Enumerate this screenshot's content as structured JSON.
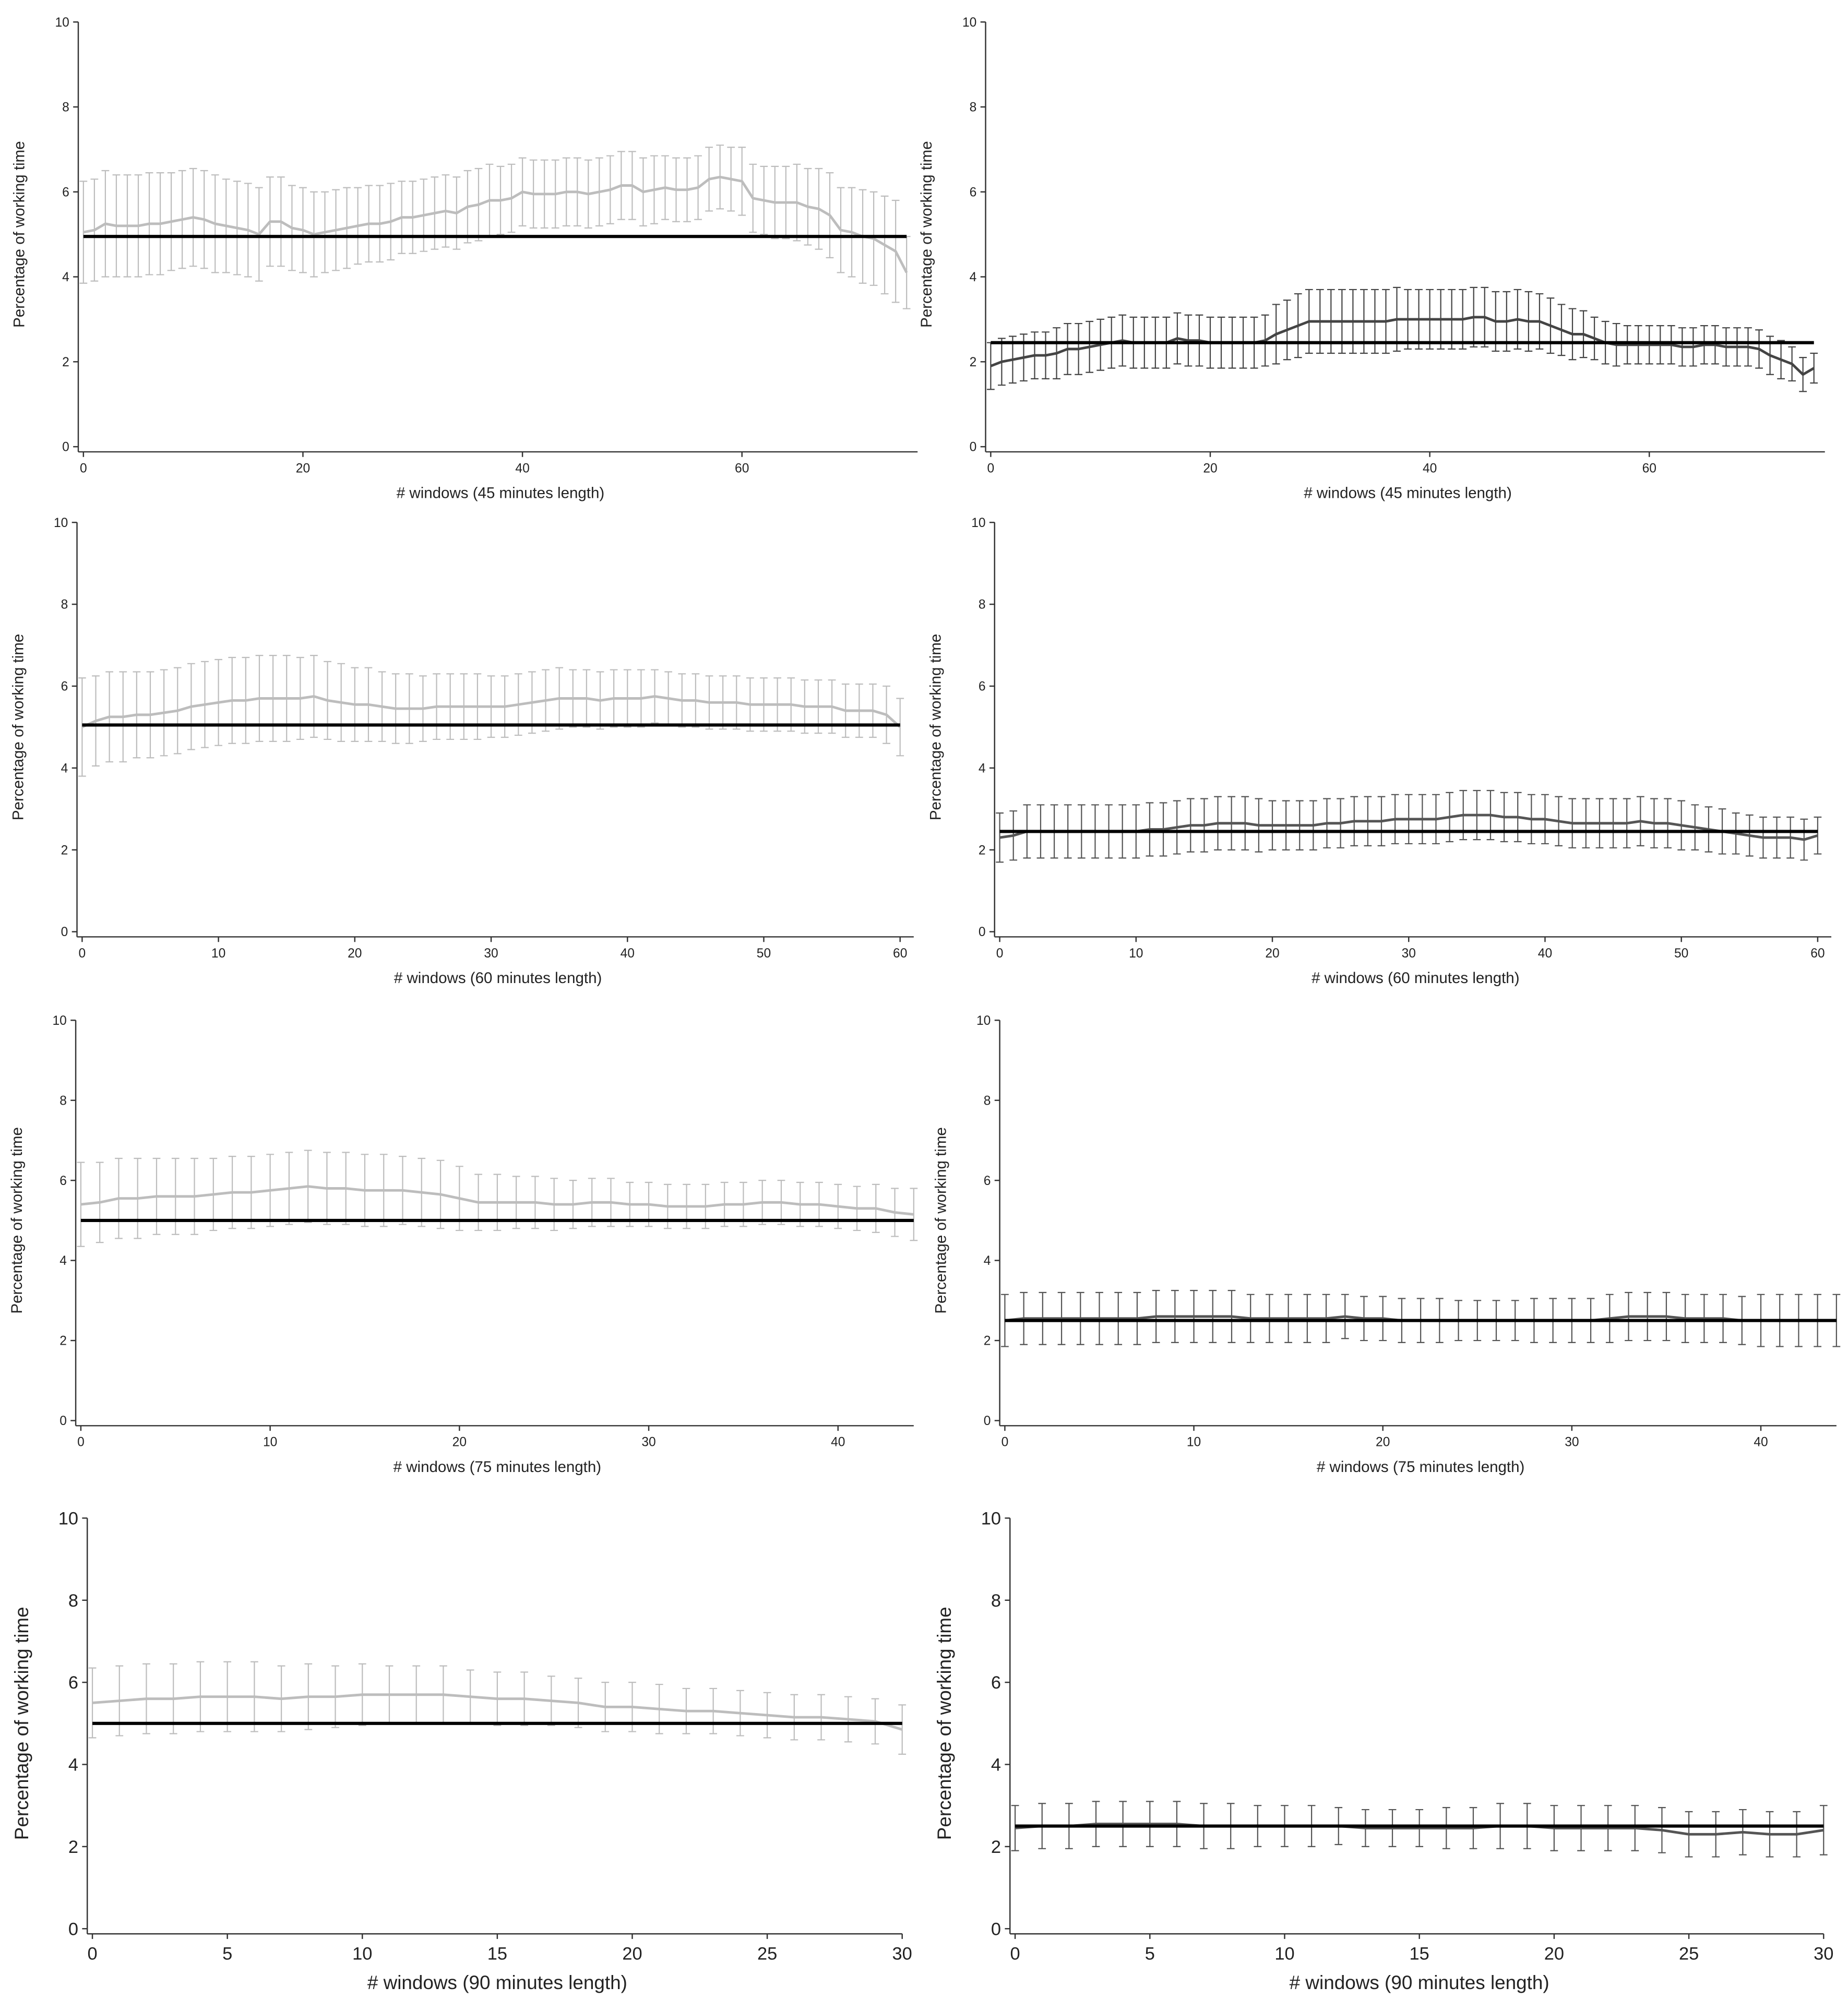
{
  "chart_data": [
    {
      "type": "line",
      "x_label": "# windows (45 minutes length)",
      "y_label": "Percentage of working time",
      "xlim": [
        0,
        76
      ],
      "ylim": [
        0,
        10
      ],
      "xticks": [
        0,
        20,
        40,
        60
      ],
      "yticks": [
        0,
        2,
        4,
        6,
        8,
        10
      ],
      "reference_line": 4.95,
      "reference_color": "#000000",
      "series": [
        {
          "color": "#bdbdbd",
          "values": [
            5.05,
            5.1,
            5.25,
            5.2,
            5.2,
            5.2,
            5.25,
            5.25,
            5.3,
            5.35,
            5.4,
            5.35,
            5.25,
            5.2,
            5.15,
            5.1,
            5.0,
            5.3,
            5.3,
            5.15,
            5.1,
            5.0,
            5.05,
            5.1,
            5.15,
            5.2,
            5.25,
            5.25,
            5.3,
            5.4,
            5.4,
            5.45,
            5.5,
            5.55,
            5.5,
            5.65,
            5.7,
            5.8,
            5.8,
            5.85,
            6.0,
            5.95,
            5.95,
            5.95,
            6.0,
            6.0,
            5.95,
            6.0,
            6.05,
            6.15,
            6.15,
            6.0,
            6.05,
            6.1,
            6.05,
            6.05,
            6.1,
            6.3,
            6.35,
            6.3,
            6.25,
            5.85,
            5.8,
            5.75,
            5.75,
            5.75,
            5.65,
            5.6,
            5.45,
            5.1,
            5.05,
            4.95,
            4.9,
            4.75,
            4.6,
            4.1
          ],
          "errors": [
            1.2,
            1.2,
            1.25,
            1.2,
            1.2,
            1.2,
            1.2,
            1.2,
            1.15,
            1.15,
            1.15,
            1.15,
            1.15,
            1.1,
            1.1,
            1.1,
            1.1,
            1.05,
            1.05,
            1.0,
            1.0,
            1.0,
            0.95,
            0.95,
            0.95,
            0.9,
            0.9,
            0.9,
            0.9,
            0.85,
            0.85,
            0.85,
            0.85,
            0.85,
            0.85,
            0.85,
            0.85,
            0.85,
            0.8,
            0.8,
            0.8,
            0.8,
            0.8,
            0.8,
            0.8,
            0.8,
            0.8,
            0.8,
            0.8,
            0.8,
            0.8,
            0.8,
            0.8,
            0.75,
            0.75,
            0.75,
            0.75,
            0.75,
            0.75,
            0.75,
            0.8,
            0.8,
            0.8,
            0.85,
            0.85,
            0.9,
            0.9,
            0.95,
            1.0,
            1.0,
            1.05,
            1.1,
            1.1,
            1.15,
            1.2,
            0.85
          ]
        }
      ]
    },
    {
      "type": "line",
      "x_label": "# windows (45 minutes length)",
      "y_label": "Percentage of working time",
      "xlim": [
        0,
        76
      ],
      "ylim": [
        0,
        10
      ],
      "xticks": [
        0,
        20,
        40,
        60
      ],
      "yticks": [
        0,
        2,
        4,
        6,
        8,
        10
      ],
      "reference_line": 2.45,
      "reference_color": "#000000",
      "series": [
        {
          "color": "#444444",
          "values": [
            1.9,
            2.0,
            2.05,
            2.1,
            2.15,
            2.15,
            2.2,
            2.3,
            2.3,
            2.35,
            2.4,
            2.45,
            2.5,
            2.45,
            2.45,
            2.45,
            2.45,
            2.55,
            2.5,
            2.5,
            2.45,
            2.45,
            2.45,
            2.45,
            2.45,
            2.5,
            2.65,
            2.75,
            2.85,
            2.95,
            2.95,
            2.95,
            2.95,
            2.95,
            2.95,
            2.95,
            2.95,
            3.0,
            3.0,
            3.0,
            3.0,
            3.0,
            3.0,
            3.0,
            3.05,
            3.05,
            2.95,
            2.95,
            3.0,
            2.95,
            2.95,
            2.85,
            2.75,
            2.65,
            2.65,
            2.55,
            2.45,
            2.4,
            2.4,
            2.4,
            2.4,
            2.4,
            2.4,
            2.35,
            2.35,
            2.4,
            2.4,
            2.35,
            2.35,
            2.35,
            2.3,
            2.15,
            2.05,
            1.95,
            1.7,
            1.85
          ],
          "errors": [
            0.55,
            0.55,
            0.55,
            0.55,
            0.55,
            0.55,
            0.6,
            0.6,
            0.6,
            0.6,
            0.6,
            0.6,
            0.6,
            0.6,
            0.6,
            0.6,
            0.6,
            0.6,
            0.6,
            0.6,
            0.6,
            0.6,
            0.6,
            0.6,
            0.6,
            0.6,
            0.7,
            0.7,
            0.75,
            0.75,
            0.75,
            0.75,
            0.75,
            0.75,
            0.75,
            0.75,
            0.75,
            0.75,
            0.7,
            0.7,
            0.7,
            0.7,
            0.7,
            0.7,
            0.7,
            0.7,
            0.7,
            0.7,
            0.7,
            0.7,
            0.65,
            0.65,
            0.6,
            0.6,
            0.55,
            0.5,
            0.5,
            0.5,
            0.45,
            0.45,
            0.45,
            0.45,
            0.45,
            0.45,
            0.45,
            0.45,
            0.45,
            0.45,
            0.45,
            0.45,
            0.45,
            0.45,
            0.45,
            0.4,
            0.4,
            0.35
          ]
        }
      ]
    },
    {
      "type": "line",
      "x_label": "# windows (60 minutes length)",
      "y_label": "Percentage of working time",
      "xlim": [
        0,
        61
      ],
      "ylim": [
        0,
        10
      ],
      "xticks": [
        0,
        10,
        20,
        30,
        40,
        50,
        60
      ],
      "yticks": [
        0,
        2,
        4,
        6,
        8,
        10
      ],
      "reference_line": 5.05,
      "reference_color": "#000000",
      "series": [
        {
          "color": "#bdbdbd",
          "values": [
            5.0,
            5.15,
            5.25,
            5.25,
            5.3,
            5.3,
            5.35,
            5.4,
            5.5,
            5.55,
            5.6,
            5.65,
            5.65,
            5.7,
            5.7,
            5.7,
            5.7,
            5.75,
            5.65,
            5.6,
            5.55,
            5.55,
            5.5,
            5.45,
            5.45,
            5.45,
            5.5,
            5.5,
            5.5,
            5.5,
            5.5,
            5.5,
            5.55,
            5.6,
            5.65,
            5.7,
            5.7,
            5.7,
            5.65,
            5.7,
            5.7,
            5.7,
            5.75,
            5.7,
            5.65,
            5.65,
            5.6,
            5.6,
            5.6,
            5.55,
            5.55,
            5.55,
            5.55,
            5.5,
            5.5,
            5.5,
            5.4,
            5.4,
            5.4,
            5.3,
            5.0
          ],
          "errors": [
            1.2,
            1.1,
            1.1,
            1.1,
            1.05,
            1.05,
            1.05,
            1.05,
            1.05,
            1.05,
            1.05,
            1.05,
            1.05,
            1.05,
            1.05,
            1.05,
            1.0,
            1.0,
            0.95,
            0.95,
            0.9,
            0.9,
            0.85,
            0.85,
            0.85,
            0.8,
            0.8,
            0.8,
            0.8,
            0.8,
            0.75,
            0.75,
            0.75,
            0.75,
            0.75,
            0.75,
            0.7,
            0.7,
            0.7,
            0.7,
            0.7,
            0.7,
            0.65,
            0.65,
            0.65,
            0.65,
            0.65,
            0.65,
            0.65,
            0.65,
            0.65,
            0.65,
            0.65,
            0.65,
            0.65,
            0.65,
            0.65,
            0.65,
            0.65,
            0.7,
            0.7
          ]
        }
      ]
    },
    {
      "type": "line",
      "x_label": "# windows (60 minutes length)",
      "y_label": "Percentage of working time",
      "xlim": [
        0,
        61
      ],
      "ylim": [
        0,
        10
      ],
      "xticks": [
        0,
        10,
        20,
        30,
        40,
        50,
        60
      ],
      "yticks": [
        0,
        2,
        4,
        6,
        8,
        10
      ],
      "reference_line": 2.45,
      "reference_color": "#000000",
      "series": [
        {
          "color": "#555555",
          "values": [
            2.3,
            2.35,
            2.45,
            2.45,
            2.45,
            2.45,
            2.45,
            2.45,
            2.45,
            2.45,
            2.45,
            2.5,
            2.5,
            2.55,
            2.6,
            2.6,
            2.65,
            2.65,
            2.65,
            2.6,
            2.6,
            2.6,
            2.6,
            2.6,
            2.65,
            2.65,
            2.7,
            2.7,
            2.7,
            2.75,
            2.75,
            2.75,
            2.75,
            2.8,
            2.85,
            2.85,
            2.85,
            2.8,
            2.8,
            2.75,
            2.75,
            2.7,
            2.65,
            2.65,
            2.65,
            2.65,
            2.65,
            2.7,
            2.65,
            2.65,
            2.6,
            2.55,
            2.5,
            2.45,
            2.4,
            2.35,
            2.3,
            2.3,
            2.3,
            2.25,
            2.35
          ],
          "errors": [
            0.6,
            0.6,
            0.65,
            0.65,
            0.65,
            0.65,
            0.65,
            0.65,
            0.65,
            0.65,
            0.65,
            0.65,
            0.65,
            0.65,
            0.65,
            0.65,
            0.65,
            0.65,
            0.65,
            0.65,
            0.6,
            0.6,
            0.6,
            0.6,
            0.6,
            0.6,
            0.6,
            0.6,
            0.6,
            0.6,
            0.6,
            0.6,
            0.6,
            0.6,
            0.6,
            0.6,
            0.6,
            0.6,
            0.6,
            0.6,
            0.6,
            0.6,
            0.6,
            0.6,
            0.6,
            0.6,
            0.6,
            0.6,
            0.6,
            0.6,
            0.6,
            0.55,
            0.55,
            0.55,
            0.5,
            0.5,
            0.5,
            0.5,
            0.5,
            0.5,
            0.45
          ]
        }
      ]
    },
    {
      "type": "line",
      "x_label": "# windows (75 minutes length)",
      "y_label": "Percentage of working time",
      "xlim": [
        0,
        44
      ],
      "ylim": [
        0,
        10
      ],
      "xticks": [
        0,
        10,
        20,
        30,
        40
      ],
      "yticks": [
        0,
        2,
        4,
        6,
        8,
        10
      ],
      "reference_line": 5.0,
      "reference_color": "#000000",
      "series": [
        {
          "color": "#bdbdbd",
          "values": [
            5.4,
            5.45,
            5.55,
            5.55,
            5.6,
            5.6,
            5.6,
            5.65,
            5.7,
            5.7,
            5.75,
            5.8,
            5.85,
            5.8,
            5.8,
            5.75,
            5.75,
            5.75,
            5.7,
            5.65,
            5.55,
            5.45,
            5.45,
            5.45,
            5.45,
            5.4,
            5.4,
            5.45,
            5.45,
            5.4,
            5.4,
            5.35,
            5.35,
            5.35,
            5.4,
            5.4,
            5.45,
            5.45,
            5.4,
            5.4,
            5.35,
            5.3,
            5.3,
            5.2,
            5.15
          ],
          "errors": [
            1.05,
            1.0,
            1.0,
            1.0,
            0.95,
            0.95,
            0.95,
            0.9,
            0.9,
            0.9,
            0.9,
            0.9,
            0.9,
            0.9,
            0.9,
            0.9,
            0.9,
            0.85,
            0.85,
            0.85,
            0.8,
            0.7,
            0.7,
            0.65,
            0.65,
            0.65,
            0.6,
            0.6,
            0.6,
            0.55,
            0.55,
            0.55,
            0.55,
            0.55,
            0.55,
            0.55,
            0.55,
            0.55,
            0.55,
            0.55,
            0.55,
            0.55,
            0.6,
            0.6,
            0.65
          ]
        }
      ]
    },
    {
      "type": "line",
      "x_label": "# windows (75 minutes length)",
      "y_label": "Percentage of working time",
      "xlim": [
        0,
        44
      ],
      "ylim": [
        0,
        10
      ],
      "xticks": [
        0,
        10,
        20,
        30,
        40
      ],
      "yticks": [
        0,
        2,
        4,
        6,
        8,
        10
      ],
      "reference_line": 2.5,
      "reference_color": "#000000",
      "series": [
        {
          "color": "#555555",
          "values": [
            2.5,
            2.55,
            2.55,
            2.55,
            2.55,
            2.55,
            2.55,
            2.55,
            2.6,
            2.6,
            2.6,
            2.6,
            2.6,
            2.55,
            2.55,
            2.55,
            2.55,
            2.55,
            2.6,
            2.55,
            2.55,
            2.5,
            2.5,
            2.5,
            2.5,
            2.5,
            2.5,
            2.5,
            2.5,
            2.5,
            2.5,
            2.5,
            2.55,
            2.6,
            2.6,
            2.6,
            2.55,
            2.55,
            2.55,
            2.5,
            2.5,
            2.5,
            2.5,
            2.5,
            2.5
          ],
          "errors": [
            0.65,
            0.65,
            0.65,
            0.65,
            0.65,
            0.65,
            0.65,
            0.65,
            0.65,
            0.65,
            0.65,
            0.65,
            0.65,
            0.6,
            0.6,
            0.6,
            0.6,
            0.6,
            0.55,
            0.55,
            0.55,
            0.55,
            0.55,
            0.55,
            0.5,
            0.5,
            0.5,
            0.5,
            0.55,
            0.55,
            0.55,
            0.55,
            0.6,
            0.6,
            0.6,
            0.6,
            0.6,
            0.6,
            0.6,
            0.6,
            0.65,
            0.65,
            0.65,
            0.65,
            0.65
          ]
        }
      ]
    },
    {
      "type": "line",
      "x_label": "# windows (90 minutes length)",
      "y_label": "Percentage of working time",
      "xlim": [
        0,
        30
      ],
      "ylim": [
        0,
        10
      ],
      "xticks": [
        0,
        5,
        10,
        15,
        20,
        25,
        30
      ],
      "yticks": [
        0,
        2,
        4,
        6,
        8,
        10
      ],
      "reference_line": 5.0,
      "reference_color": "#000000",
      "series": [
        {
          "color": "#bdbdbd",
          "values": [
            5.5,
            5.55,
            5.6,
            5.6,
            5.65,
            5.65,
            5.65,
            5.6,
            5.65,
            5.65,
            5.7,
            5.7,
            5.7,
            5.7,
            5.65,
            5.6,
            5.6,
            5.55,
            5.5,
            5.4,
            5.4,
            5.35,
            5.3,
            5.3,
            5.25,
            5.2,
            5.15,
            5.15,
            5.1,
            5.05,
            4.85
          ],
          "errors": [
            0.85,
            0.85,
            0.85,
            0.85,
            0.85,
            0.85,
            0.85,
            0.8,
            0.8,
            0.75,
            0.75,
            0.7,
            0.7,
            0.7,
            0.65,
            0.65,
            0.65,
            0.6,
            0.6,
            0.6,
            0.6,
            0.6,
            0.55,
            0.55,
            0.55,
            0.55,
            0.55,
            0.55,
            0.55,
            0.55,
            0.6
          ]
        }
      ]
    },
    {
      "type": "line",
      "x_label": "# windows (90 minutes length)",
      "y_label": "Percentage of working time",
      "xlim": [
        0,
        30
      ],
      "ylim": [
        0,
        10
      ],
      "xticks": [
        0,
        5,
        10,
        15,
        20,
        25,
        30
      ],
      "yticks": [
        0,
        2,
        4,
        6,
        8,
        10
      ],
      "reference_line": 2.5,
      "reference_color": "#000000",
      "series": [
        {
          "color": "#555555",
          "values": [
            2.45,
            2.5,
            2.5,
            2.55,
            2.55,
            2.55,
            2.55,
            2.5,
            2.5,
            2.5,
            2.5,
            2.5,
            2.5,
            2.45,
            2.45,
            2.45,
            2.45,
            2.45,
            2.5,
            2.5,
            2.45,
            2.45,
            2.45,
            2.45,
            2.4,
            2.3,
            2.3,
            2.35,
            2.3,
            2.3,
            2.4
          ],
          "errors": [
            0.55,
            0.55,
            0.55,
            0.55,
            0.55,
            0.55,
            0.55,
            0.55,
            0.55,
            0.5,
            0.5,
            0.5,
            0.45,
            0.45,
            0.45,
            0.45,
            0.5,
            0.5,
            0.55,
            0.55,
            0.55,
            0.55,
            0.55,
            0.55,
            0.55,
            0.55,
            0.55,
            0.55,
            0.55,
            0.55,
            0.6
          ]
        }
      ]
    }
  ]
}
